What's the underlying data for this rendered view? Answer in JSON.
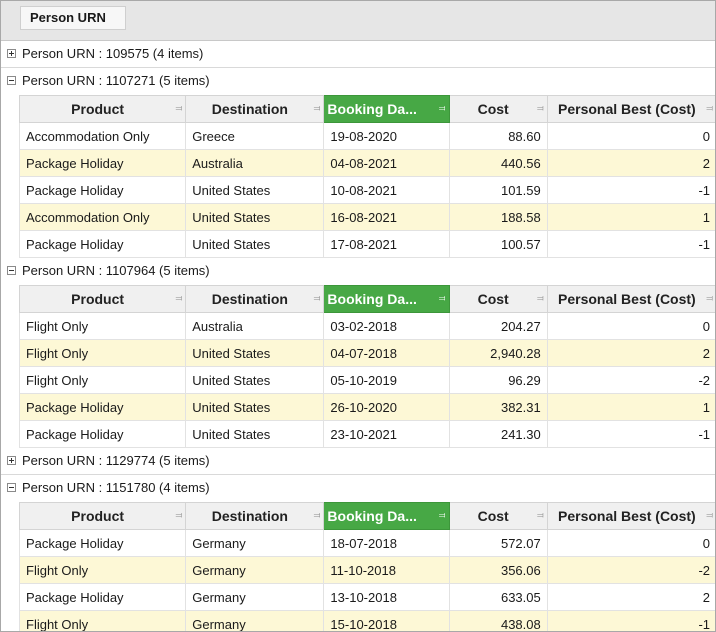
{
  "group_panel": {
    "chip_label": "Person URN"
  },
  "columns": {
    "product": "Product",
    "destination": "Destination",
    "booking_date": "Booking Da...",
    "cost": "Cost",
    "personal_best": "Personal Best (Cost)"
  },
  "groups": [
    {
      "label": "Person URN : 109575 (4 items)",
      "expanded": false,
      "rows": []
    },
    {
      "label": "Person URN : 1107271 (5 items)",
      "expanded": true,
      "rows": [
        [
          "Accommodation Only",
          "Greece",
          "19-08-2020",
          "88.60",
          "0"
        ],
        [
          "Package Holiday",
          "Australia",
          "04-08-2021",
          "440.56",
          "2"
        ],
        [
          "Package Holiday",
          "United States",
          "10-08-2021",
          "101.59",
          "-1"
        ],
        [
          "Accommodation Only",
          "United States",
          "16-08-2021",
          "188.58",
          "1"
        ],
        [
          "Package Holiday",
          "United States",
          "17-08-2021",
          "100.57",
          "-1"
        ]
      ]
    },
    {
      "label": "Person URN : 1107964 (5 items)",
      "expanded": true,
      "rows": [
        [
          "Flight Only",
          "Australia",
          "03-02-2018",
          "204.27",
          "0"
        ],
        [
          "Flight Only",
          "United States",
          "04-07-2018",
          "2,940.28",
          "2"
        ],
        [
          "Flight Only",
          "United States",
          "05-10-2019",
          "96.29",
          "-2"
        ],
        [
          "Package Holiday",
          "United States",
          "26-10-2020",
          "382.31",
          "1"
        ],
        [
          "Package Holiday",
          "United States",
          "23-10-2021",
          "241.30",
          "-1"
        ]
      ]
    },
    {
      "label": "Person URN : 1129774 (5 items)",
      "expanded": false,
      "rows": []
    },
    {
      "label": "Person URN : 1151780 (4 items)",
      "expanded": true,
      "rows": [
        [
          "Package Holiday",
          "Germany",
          "18-07-2018",
          "572.07",
          "0"
        ],
        [
          "Flight Only",
          "Germany",
          "11-10-2018",
          "356.06",
          "-2"
        ],
        [
          "Package Holiday",
          "Germany",
          "13-10-2018",
          "633.05",
          "2"
        ],
        [
          "Flight Only",
          "Germany",
          "15-10-2018",
          "438.08",
          "-1"
        ]
      ]
    }
  ],
  "colors": {
    "active_header": "#47a845",
    "alt_row": "#fdf8d6"
  }
}
